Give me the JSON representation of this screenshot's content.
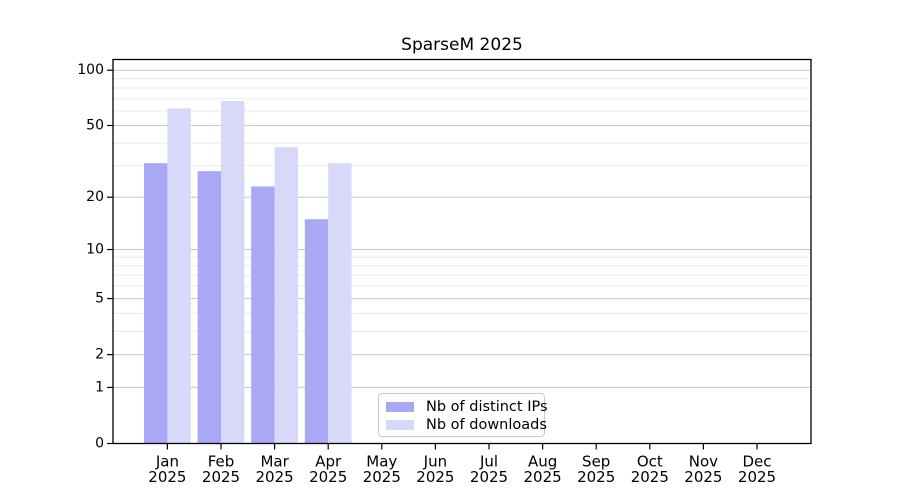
{
  "chart_data": {
    "type": "bar",
    "title": "SparseM 2025",
    "categories": [
      "Jan",
      "Feb",
      "Mar",
      "Apr",
      "May",
      "Jun",
      "Jul",
      "Aug",
      "Sep",
      "Oct",
      "Nov",
      "Dec"
    ],
    "x_axis": {
      "year_line": "2025"
    },
    "series": [
      {
        "name": "Nb of distinct IPs",
        "color": "#a8a8f5",
        "values": [
          31,
          28,
          23,
          15,
          null,
          null,
          null,
          null,
          null,
          null,
          null,
          null
        ]
      },
      {
        "name": "Nb of downloads",
        "color": "#d8d8f8",
        "values": [
          62,
          68,
          38,
          31,
          null,
          null,
          null,
          null,
          null,
          null,
          null,
          null
        ]
      }
    ],
    "y_axis": {
      "scale": "log1p",
      "major_ticks": [
        0,
        1,
        2,
        5,
        10,
        20,
        50,
        100
      ],
      "minor_ticks": [
        3,
        4,
        6,
        7,
        8,
        9,
        30,
        40,
        60,
        70,
        80,
        90
      ],
      "ylim": [
        0,
        115
      ]
    },
    "legend": {
      "position": "lower-center-inside"
    },
    "grid": "horizontal major+minor"
  },
  "colors": {
    "background": "#ffffff",
    "frame": "#000000",
    "grid_major": "#c9c9c9",
    "grid_minor": "#ebebeb",
    "legend_border": "#c9c9c9",
    "text": "#000000"
  }
}
